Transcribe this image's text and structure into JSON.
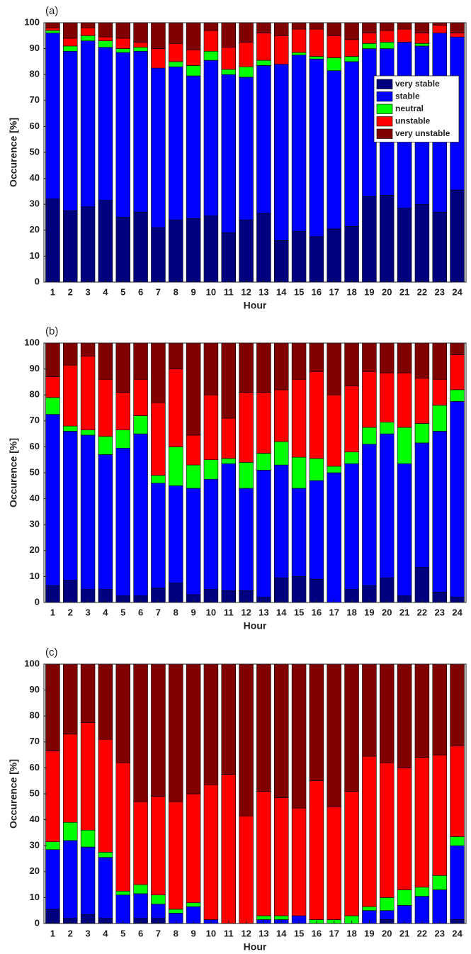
{
  "chart_data": [
    {
      "type": "bar",
      "stacked": true,
      "label": "(a)",
      "xlabel": "Hour",
      "ylabel": "Occurence [%]",
      "categories": [
        "1",
        "2",
        "3",
        "4",
        "5",
        "6",
        "7",
        "8",
        "9",
        "10",
        "11",
        "12",
        "13",
        "14",
        "15",
        "16",
        "17",
        "18",
        "19",
        "20",
        "21",
        "22",
        "23",
        "24"
      ],
      "ylim": [
        0,
        100
      ],
      "yticks": [
        0,
        10,
        20,
        30,
        40,
        50,
        60,
        70,
        80,
        90,
        100
      ],
      "legend": "upper right",
      "series": [
        {
          "name": "very stable",
          "color": "#00007f",
          "values": [
            32,
            27.5,
            29,
            31.5,
            25,
            27,
            21,
            24,
            24.5,
            25.5,
            19,
            24,
            26.5,
            16,
            19.5,
            17.5,
            20.5,
            21.5,
            33,
            33.5,
            28.5,
            30,
            27,
            35.5
          ]
        },
        {
          "name": "stable",
          "color": "#0000ff",
          "values": [
            64,
            61.5,
            64,
            59,
            63.5,
            62,
            61.5,
            59,
            55,
            60,
            61,
            55,
            57,
            68,
            68,
            68.5,
            61,
            63.5,
            57,
            56.5,
            64,
            61,
            69,
            59
          ]
        },
        {
          "name": "neutral",
          "color": "#00ff00",
          "values": [
            1,
            2,
            2,
            2.5,
            1.5,
            1.5,
            0,
            2,
            4,
            3.5,
            2,
            4,
            2,
            0,
            1,
            1,
            5,
            2,
            2,
            2.5,
            0,
            1,
            0,
            0
          ]
        },
        {
          "name": "unstable",
          "color": "#ff0000",
          "values": [
            1,
            3,
            3,
            1.5,
            4,
            2,
            7.5,
            7,
            6,
            8,
            8.5,
            9.5,
            10.5,
            11,
            9,
            10.5,
            8.5,
            6.5,
            4,
            4.5,
            5,
            4,
            3,
            1.5
          ]
        },
        {
          "name": "very unstable",
          "color": "#800000",
          "values": [
            2,
            6,
            2,
            5.5,
            6,
            7.5,
            10,
            8,
            10.5,
            3,
            9.5,
            7.5,
            4,
            5,
            2.5,
            2.5,
            5,
            6.5,
            4,
            3,
            2.5,
            4,
            1,
            4
          ]
        }
      ]
    },
    {
      "type": "bar",
      "stacked": true,
      "label": "(b)",
      "xlabel": "Hour",
      "ylabel": "Occurence [%]",
      "categories": [
        "1",
        "2",
        "3",
        "4",
        "5",
        "6",
        "7",
        "8",
        "9",
        "10",
        "11",
        "12",
        "13",
        "14",
        "15",
        "16",
        "17",
        "18",
        "19",
        "20",
        "21",
        "22",
        "23",
        "24"
      ],
      "ylim": [
        0,
        100
      ],
      "yticks": [
        0,
        10,
        20,
        30,
        40,
        50,
        60,
        70,
        80,
        90,
        100
      ],
      "series": [
        {
          "color": "#00007f",
          "values": [
            6.5,
            8.5,
            5,
            5,
            2.5,
            2.5,
            5.5,
            7.5,
            3,
            5,
            4.5,
            4.5,
            2,
            9.5,
            10,
            9,
            0,
            5,
            6.5,
            9.5,
            2.5,
            13.5,
            4,
            2
          ]
        },
        {
          "color": "#0000ff",
          "values": [
            66,
            57.5,
            59.5,
            52,
            57,
            62.5,
            40.5,
            37.5,
            41,
            42.5,
            49,
            39.5,
            49,
            43.5,
            34,
            38,
            50,
            48.5,
            54.5,
            55.5,
            51,
            48,
            62,
            75.5
          ]
        },
        {
          "color": "#00ff00",
          "values": [
            6.5,
            2,
            2,
            7,
            7,
            7,
            3,
            15,
            9,
            7.5,
            2,
            10,
            6.5,
            9,
            12,
            8.5,
            2.5,
            4.5,
            6.5,
            4.5,
            14,
            7.5,
            10,
            4.5
          ]
        },
        {
          "color": "#ff0000",
          "values": [
            8,
            23.5,
            28.5,
            22,
            14.5,
            14,
            28,
            30,
            11.5,
            25,
            15.5,
            27,
            23.5,
            20,
            30,
            33.5,
            27.5,
            25.5,
            21.5,
            19,
            21,
            17.5,
            10,
            13.5
          ]
        },
        {
          "color": "#800000",
          "values": [
            13,
            8.5,
            5,
            14,
            19,
            14,
            23,
            10,
            35.5,
            20,
            29,
            19,
            19,
            18,
            14,
            11,
            20,
            16.5,
            11,
            11.5,
            11.5,
            13.5,
            14,
            4.5
          ]
        }
      ]
    },
    {
      "type": "bar",
      "stacked": true,
      "label": "(c)",
      "xlabel": "Hour",
      "ylabel": "Occurence [%]",
      "categories": [
        "1",
        "2",
        "3",
        "4",
        "5",
        "6",
        "7",
        "8",
        "9",
        "10",
        "11",
        "12",
        "13",
        "14",
        "15",
        "16",
        "17",
        "18",
        "19",
        "20",
        "21",
        "22",
        "23",
        "24"
      ],
      "ylim": [
        0,
        100
      ],
      "yticks": [
        0,
        10,
        20,
        30,
        40,
        50,
        60,
        70,
        80,
        90,
        100
      ],
      "series": [
        {
          "color": "#00007f",
          "values": [
            5.5,
            2,
            3.5,
            2,
            0,
            2,
            2,
            0,
            0,
            0,
            0,
            0,
            0,
            0,
            0,
            0,
            0,
            0,
            0,
            1.5,
            0,
            0,
            0,
            1.5
          ]
        },
        {
          "color": "#0000ff",
          "values": [
            23,
            30,
            26,
            23.5,
            11,
            9.5,
            5.5,
            4,
            6.5,
            1.5,
            0,
            0,
            1.5,
            1.5,
            3,
            0,
            0,
            0,
            5,
            3.5,
            7,
            10.5,
            13,
            28.5
          ]
        },
        {
          "color": "#00ff00",
          "values": [
            3,
            7,
            6.5,
            2,
            1.5,
            3.5,
            3.5,
            1.5,
            1.5,
            0,
            0,
            0,
            1.5,
            1.5,
            0,
            1.5,
            1.5,
            3,
            1.5,
            5,
            6,
            3.5,
            5.5,
            3.5
          ]
        },
        {
          "color": "#ff0000",
          "values": [
            35,
            34,
            41.5,
            43.5,
            49.5,
            32,
            38,
            41.5,
            42,
            52,
            57.5,
            41.5,
            48,
            45.5,
            41.5,
            53.5,
            43.5,
            48,
            58,
            52,
            47,
            50,
            46.5,
            35
          ]
        },
        {
          "color": "#800000",
          "values": [
            33.5,
            27,
            22.5,
            29,
            38,
            53,
            51,
            53,
            50,
            46.5,
            42.5,
            58.5,
            49,
            51.5,
            55.5,
            45,
            55,
            49,
            35.5,
            38,
            40,
            36,
            35,
            31.5
          ]
        }
      ]
    }
  ]
}
